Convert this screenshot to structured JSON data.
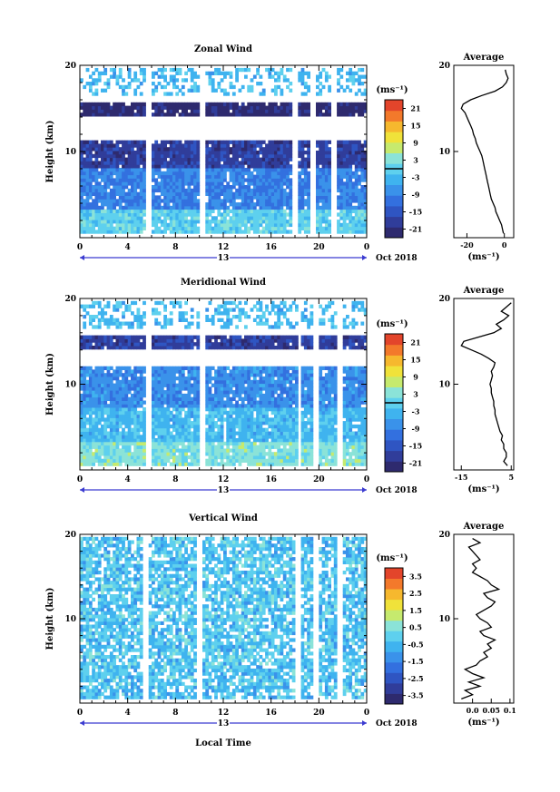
{
  "shared": {
    "ylabel": "Height (km)",
    "x_ticks": [
      "0",
      "4",
      "8",
      "12",
      "16",
      "20",
      "0"
    ],
    "date_center": "13",
    "date_right": "Oct 2018",
    "xlabel": "Local Time",
    "y_ticks": [
      "10",
      "20"
    ]
  },
  "colormap": [
    "#2e2a6e",
    "#303d9a",
    "#2f55c2",
    "#3370df",
    "#3a92ea",
    "#3fb3ef",
    "#5ed0ee",
    "#8be3d8",
    "#c6ea6e",
    "#f0e23a",
    "#f6b82e",
    "#f3792b",
    "#e3452b"
  ],
  "chart_data": [
    {
      "type": "heatmap",
      "title": "Zonal Wind",
      "ylabel": "Height (km)",
      "xlabel": "",
      "xlim": [
        0,
        24
      ],
      "ylim": [
        0,
        20
      ],
      "unit_label": "(ms⁻¹)",
      "colorbar_ticks": [
        "21",
        "15",
        "9",
        "3",
        "-3",
        "-9",
        "-15",
        "-21"
      ],
      "colorbar_range": [
        -24,
        24
      ],
      "zero_contour": true,
      "field": {
        "description_layers": [
          {
            "height_range_km": [
              16.5,
              19.5
            ],
            "typical_value": -3
          },
          {
            "height_range_km": [
              14.0,
              15.5
            ],
            "typical_value": -22
          },
          {
            "height_range_km": [
              8.0,
              11.0
            ],
            "typical_value": -18
          },
          {
            "height_range_km": [
              3.0,
              8.0
            ],
            "typical_value": -9
          },
          {
            "height_range_km": [
              0.5,
              3.0
            ],
            "typical_value": 0
          }
        ],
        "gaps_local_time_h": [
          [
            5.5,
            6.0
          ],
          [
            10.0,
            10.6
          ],
          [
            17.8,
            18.3
          ],
          [
            19.2,
            19.7
          ],
          [
            21.0,
            21.5
          ]
        ]
      },
      "average_profile": {
        "title": "Average",
        "xlabel": "(ms⁻¹)",
        "x_ticks": [
          "-20",
          "0"
        ],
        "xlim": [
          -27,
          5
        ],
        "height_km": [
          0.5,
          1,
          1.5,
          2,
          2.5,
          3,
          3.5,
          4,
          4.5,
          5,
          5.5,
          6,
          6.5,
          7,
          7.5,
          8,
          8.5,
          9,
          9.5,
          10,
          10.5,
          11,
          11.5,
          12,
          12.5,
          13,
          13.5,
          14,
          14.5,
          15,
          15.5,
          16,
          16.5,
          17,
          17.5,
          18,
          18.5,
          19,
          19.5
        ],
        "value": [
          -0.5,
          -1,
          -1.5,
          -2.5,
          -3.5,
          -4.5,
          -5,
          -6,
          -7,
          -7.5,
          -8,
          -8.5,
          -9,
          -9.5,
          -10,
          -10.5,
          -11,
          -11.5,
          -12,
          -13,
          -14,
          -15,
          -15.5,
          -16.5,
          -17,
          -18,
          -19,
          -20,
          -21,
          -23,
          -22,
          -18,
          -12,
          -5,
          -1,
          1,
          2,
          1,
          0.5
        ]
      }
    },
    {
      "type": "heatmap",
      "title": "Meridional Wind",
      "ylabel": "Height (km)",
      "xlabel": "",
      "xlim": [
        0,
        24
      ],
      "ylim": [
        0,
        20
      ],
      "unit_label": "(ms⁻¹)",
      "colorbar_ticks": [
        "21",
        "15",
        "9",
        "3",
        "-3",
        "-9",
        "-15",
        "-21"
      ],
      "colorbar_range": [
        -24,
        24
      ],
      "zero_contour": true,
      "field": {
        "description_layers": [
          {
            "height_range_km": [
              16.5,
              19.5
            ],
            "typical_value": -3
          },
          {
            "height_range_km": [
              14.0,
              15.5
            ],
            "typical_value": -18
          },
          {
            "height_range_km": [
              7.0,
              12.0
            ],
            "typical_value": -8
          },
          {
            "height_range_km": [
              3.0,
              7.0
            ],
            "typical_value": -3
          },
          {
            "height_range_km": [
              0.5,
              3.0
            ],
            "typical_value": 3
          }
        ],
        "gaps_local_time_h": [
          [
            5.5,
            6.0
          ],
          [
            10.0,
            10.6
          ],
          [
            18.2,
            18.6
          ],
          [
            19.6,
            20.0
          ],
          [
            21.6,
            22.0
          ]
        ]
      },
      "average_profile": {
        "title": "Average",
        "xlabel": "(ms⁻¹)",
        "x_ticks": [
          "-15",
          "5"
        ],
        "xlim": [
          -18,
          6
        ],
        "height_km": [
          0.5,
          1,
          1.5,
          2,
          2.5,
          3,
          3.5,
          4,
          4.5,
          5,
          5.5,
          6,
          6.5,
          7,
          7.5,
          8,
          8.5,
          9,
          9.5,
          10,
          10.5,
          11,
          11.5,
          12,
          12.5,
          13,
          13.5,
          14,
          14.5,
          15,
          15.5,
          16,
          16.5,
          17,
          17.5,
          18,
          18.5,
          19,
          19.5
        ],
        "value": [
          3.5,
          2,
          3,
          3,
          2,
          2,
          1,
          1.5,
          0.5,
          0,
          -0.5,
          -1,
          -1.5,
          -1.5,
          -2,
          -2,
          -2.5,
          -3,
          -3,
          -3.5,
          -3,
          -2.5,
          -3,
          -2,
          -1.5,
          -4,
          -7,
          -11,
          -15,
          -14,
          -8,
          -2,
          1,
          -1,
          2,
          4,
          1,
          3,
          5
        ]
      }
    },
    {
      "type": "heatmap",
      "title": "Vertical Wind",
      "ylabel": "Height (km)",
      "xlabel": "Local Time",
      "xlim": [
        0,
        24
      ],
      "ylim": [
        0,
        20
      ],
      "unit_label": "(ms⁻¹)",
      "colorbar_ticks": [
        "3.5",
        "2.5",
        "1.5",
        "0.5",
        "-0.5",
        "-1.5",
        "-2.5",
        "-3.5"
      ],
      "colorbar_range": [
        -4,
        4
      ],
      "zero_contour": false,
      "field": {
        "description_layers": [
          {
            "height_range_km": [
              0.5,
              19.5
            ],
            "typical_value": -0.3
          }
        ],
        "gaps_local_time_h": [
          [
            5.3,
            5.8
          ],
          [
            9.7,
            10.2
          ],
          [
            18.0,
            18.6
          ],
          [
            19.4,
            19.9
          ],
          [
            21.5,
            22.0
          ]
        ]
      },
      "average_profile": {
        "title": "Average",
        "xlabel": "(ms⁻¹)",
        "x_ticks": [
          "0.0",
          "0.05",
          "0.1"
        ],
        "xlim": [
          -0.05,
          0.11
        ],
        "height_km": [
          0.5,
          1,
          1.5,
          2,
          2.5,
          3,
          3.5,
          4,
          4.5,
          5,
          5.5,
          6,
          6.5,
          7,
          7.5,
          8,
          8.5,
          9,
          9.5,
          10,
          10.5,
          11,
          11.5,
          12,
          12.5,
          13,
          13.5,
          14,
          14.5,
          15,
          15.5,
          16,
          16.5,
          17,
          17.5,
          18,
          18.5,
          19,
          19.5
        ],
        "value": [
          -0.03,
          0.0,
          -0.02,
          0.02,
          -0.01,
          0.03,
          0.0,
          -0.02,
          0.01,
          0.02,
          0.04,
          0.03,
          0.05,
          0.04,
          0.06,
          0.03,
          0.02,
          0.05,
          0.04,
          0.02,
          0.01,
          0.03,
          0.05,
          0.06,
          0.04,
          0.03,
          0.07,
          0.05,
          0.04,
          0.02,
          0.0,
          0.01,
          0.0,
          0.02,
          0.01,
          0.0,
          -0.01,
          0.02,
          0.0
        ]
      }
    }
  ]
}
